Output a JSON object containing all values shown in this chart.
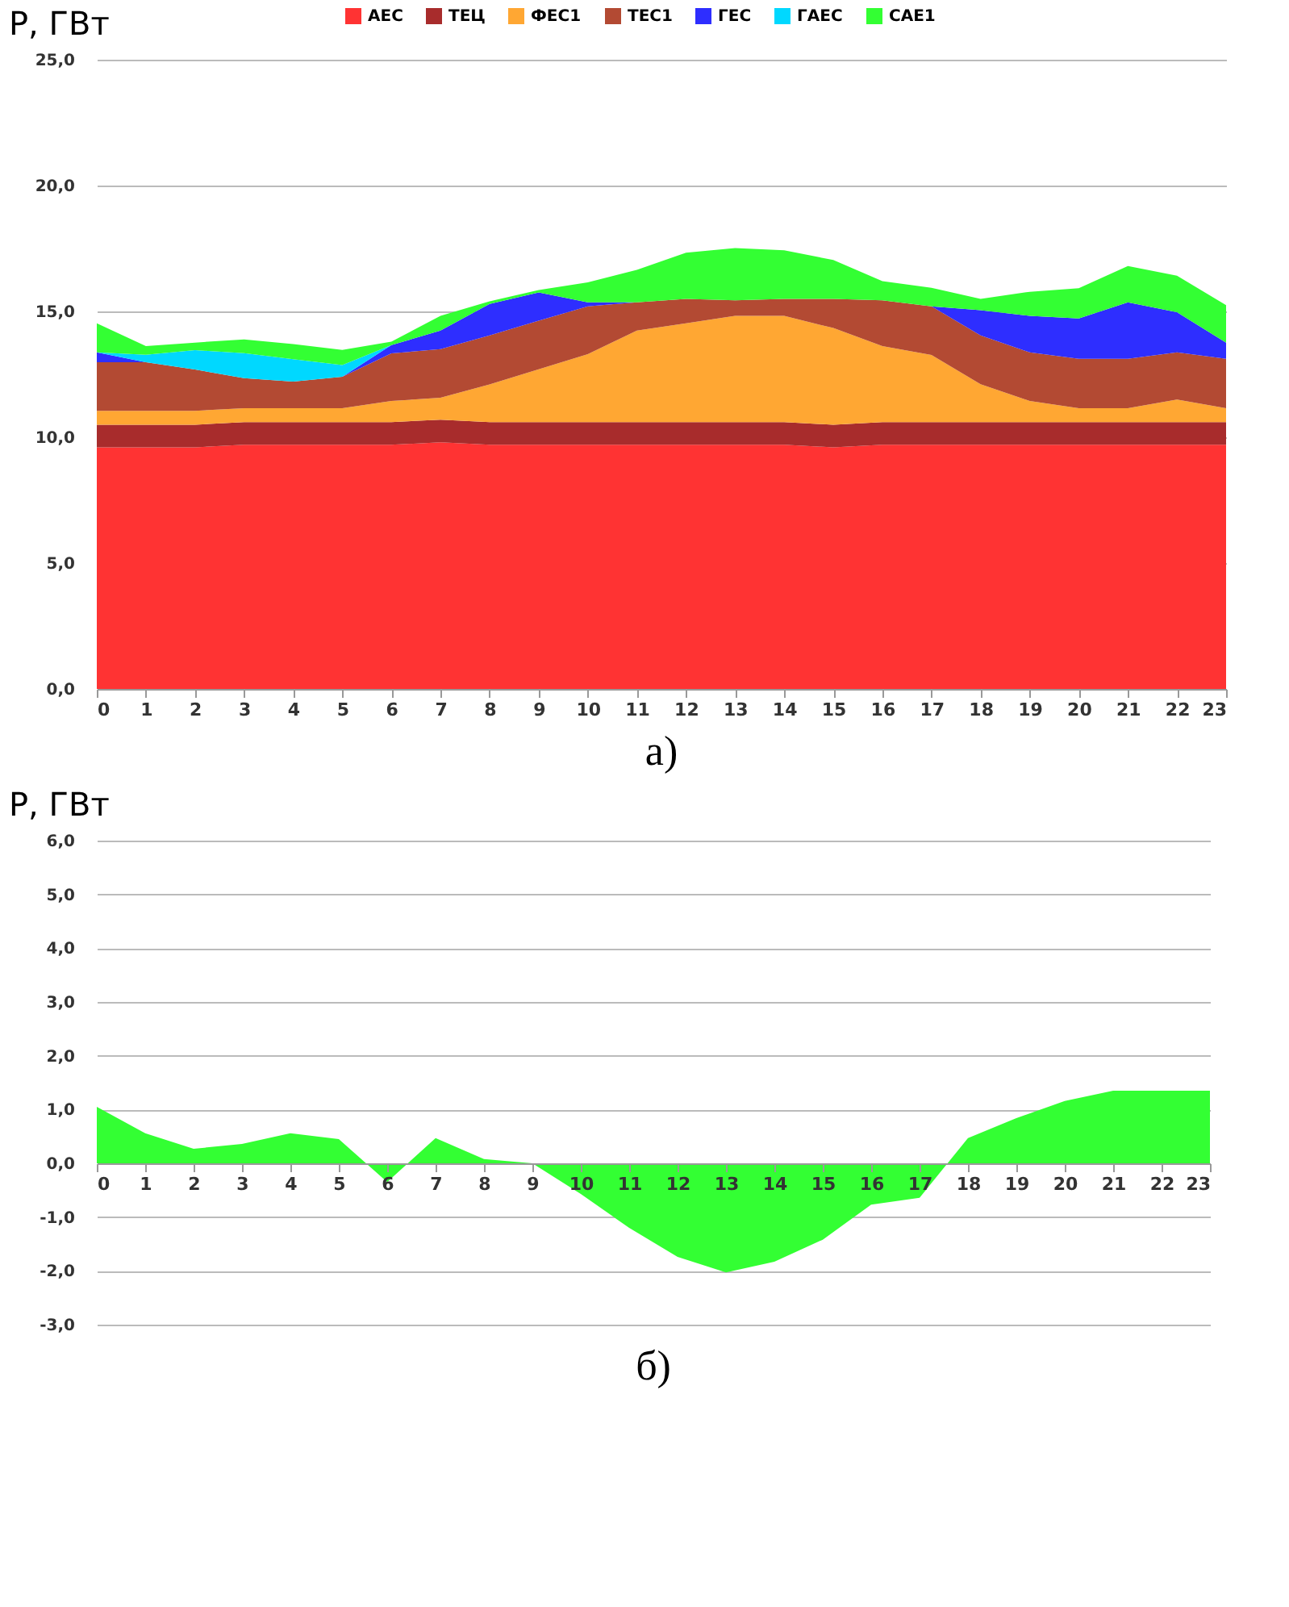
{
  "chart_data": [
    {
      "type": "area",
      "stacked": true,
      "ylabel": "P, ГВт",
      "annotations": [
        "а)"
      ],
      "legend": "top",
      "grid": "y",
      "xlim": [
        0,
        23
      ],
      "xticks": [
        0,
        1,
        2,
        3,
        4,
        5,
        6,
        7,
        8,
        9,
        10,
        11,
        12,
        13,
        14,
        15,
        16,
        17,
        18,
        19,
        20,
        21,
        22,
        23
      ],
      "ylim": [
        0,
        25
      ],
      "yticks": [
        {
          "value": 0,
          "label": "0,0"
        },
        {
          "value": 5,
          "label": "5,0"
        },
        {
          "value": 10,
          "label": "10,0"
        },
        {
          "value": 15,
          "label": "15,0"
        },
        {
          "value": 20,
          "label": "20,0"
        },
        {
          "value": 25,
          "label": "25,0"
        }
      ],
      "x": [
        0,
        1,
        2,
        3,
        4,
        5,
        6,
        7,
        8,
        9,
        10,
        11,
        12,
        13,
        14,
        15,
        16,
        17,
        18,
        19,
        20,
        21,
        22,
        23
      ],
      "series": [
        {
          "name": "АЕС",
          "color": "#ff3333",
          "values": [
            9.6,
            9.6,
            9.6,
            9.7,
            9.7,
            9.7,
            9.7,
            9.8,
            9.7,
            9.7,
            9.7,
            9.7,
            9.7,
            9.7,
            9.7,
            9.6,
            9.7,
            9.7,
            9.7,
            9.7,
            9.7,
            9.7,
            9.7,
            9.7
          ]
        },
        {
          "name": "ТЕЦ",
          "color": "#a82c2c",
          "values": [
            0.9,
            0.9,
            0.9,
            0.9,
            0.9,
            0.9,
            0.9,
            0.9,
            0.9,
            0.9,
            0.9,
            0.9,
            0.9,
            0.9,
            0.9,
            0.9,
            0.9,
            0.9,
            0.9,
            0.9,
            0.9,
            0.9,
            0.9,
            0.9
          ]
        },
        {
          "name": "ФЕС1",
          "color": "#ffa733",
          "values": [
            0.55,
            0.55,
            0.55,
            0.55,
            0.55,
            0.55,
            0.84,
            0.87,
            1.5,
            2.1,
            2.7,
            3.64,
            3.93,
            4.22,
            4.22,
            3.84,
            3.02,
            2.67,
            1.51,
            0.84,
            0.55,
            0.55,
            0.9,
            0.55
          ]
        },
        {
          "name": "ТЕС1",
          "color": "#b34a33",
          "values": [
            1.93,
            1.93,
            1.64,
            1.2,
            1.06,
            1.25,
            1.89,
            1.93,
            1.95,
            1.93,
            1.9,
            1.12,
            0.97,
            0.62,
            0.68,
            1.16,
            1.82,
            1.93,
            1.94,
            1.93,
            1.97,
            1.97,
            1.87,
            1.97
          ]
        },
        {
          "name": "ГЕС",
          "color": "#2e2eff",
          "values": [
            0.39,
            0,
            0,
            0,
            0,
            0,
            0.33,
            0.74,
            1.25,
            1.12,
            0.16,
            0,
            0,
            0,
            0,
            0,
            0,
            0,
            1.0,
            1.45,
            1.6,
            2.24,
            1.6,
            0.64
          ]
        },
        {
          "name": "ГАЕС",
          "color": "#00d8ff",
          "values": [
            0,
            0.3,
            0.77,
            0.99,
            0.89,
            0.47,
            0,
            null,
            null,
            null,
            null,
            null,
            null,
            null,
            null,
            null,
            null,
            null,
            null,
            null,
            null,
            null,
            null,
            null
          ]
        },
        {
          "name": "САЕ1",
          "color": "#33ff33",
          "values": [
            1.16,
            0.34,
            0.3,
            0.55,
            0.6,
            0.6,
            0.14,
            0.58,
            0.1,
            0.1,
            0.79,
            1.29,
            1.83,
            2.08,
            1.93,
            1.54,
            0.76,
            0.74,
            0.45,
            0.96,
            1.2,
            1.44,
            1.45,
            1.49
          ]
        }
      ]
    },
    {
      "type": "area",
      "ylabel": "P, ГВт",
      "annotations": [
        "б)"
      ],
      "grid": "y",
      "xlim": [
        0,
        23
      ],
      "xticks": [
        0,
        1,
        2,
        3,
        4,
        5,
        6,
        7,
        8,
        9,
        10,
        11,
        12,
        13,
        14,
        15,
        16,
        17,
        18,
        19,
        20,
        21,
        22,
        23
      ],
      "ylim": [
        -3,
        6
      ],
      "yticks": [
        {
          "value": -3,
          "label": "-3,0"
        },
        {
          "value": -2,
          "label": "-2,0"
        },
        {
          "value": -1,
          "label": "-1,0"
        },
        {
          "value": 0,
          "label": "0,0"
        },
        {
          "value": 1,
          "label": "1,0"
        },
        {
          "value": 2,
          "label": "2,0"
        },
        {
          "value": 3,
          "label": "3,0"
        },
        {
          "value": 4,
          "label": "4,0"
        },
        {
          "value": 5,
          "label": "5,0"
        },
        {
          "value": 6,
          "label": "6,0"
        }
      ],
      "x": [
        0,
        1,
        2,
        3,
        4,
        5,
        6,
        7,
        8,
        9,
        10,
        11,
        12,
        13,
        14,
        15,
        16,
        17,
        18,
        19,
        20,
        21,
        22,
        23
      ],
      "series": [
        {
          "color": "#33ff33",
          "values": [
            1.05,
            0.56,
            0.27,
            0.36,
            0.56,
            0.45,
            -0.35,
            0.47,
            0.08,
            0,
            -0.57,
            -1.2,
            -1.74,
            -2.03,
            -1.83,
            -1.42,
            -0.77,
            -0.64,
            0.47,
            0.84,
            1.16,
            1.35,
            1.35,
            1.35
          ]
        }
      ]
    }
  ]
}
